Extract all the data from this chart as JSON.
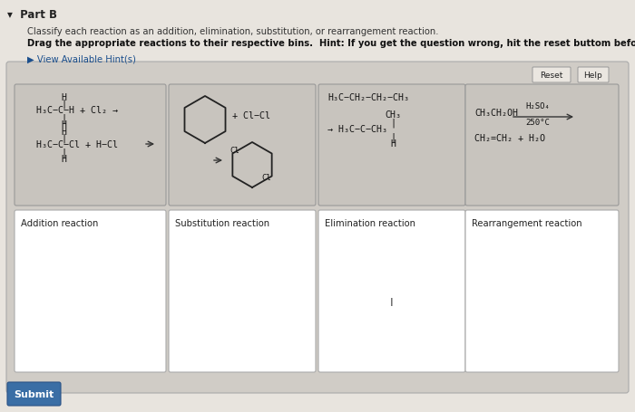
{
  "bg_outer": "#cac6c0",
  "bg_page": "#e8e4de",
  "bg_main_box": "#c8c4be",
  "bg_reaction": "#c8c4be",
  "bg_drop": "#ffffff",
  "bg_submit": "#3a6ea5",
  "title": "▾  Part B",
  "line1": "Classify each reaction as an addition, elimination, substitution, or rearrangement reaction.",
  "line2": "Drag the appropriate reactions to their respective bins.  Hint: If you get the question wrong, hit the reset buttom before trying again.",
  "hint": "▶ View Available Hint(s)",
  "reset": "Reset",
  "help": "Help",
  "submit": "Submit",
  "drop_labels": [
    "Addition reaction",
    "Substitution reaction",
    "Elimination reaction",
    "Rearrangement reaction"
  ],
  "figw": 7.0,
  "figh": 4.56,
  "dpi": 100
}
